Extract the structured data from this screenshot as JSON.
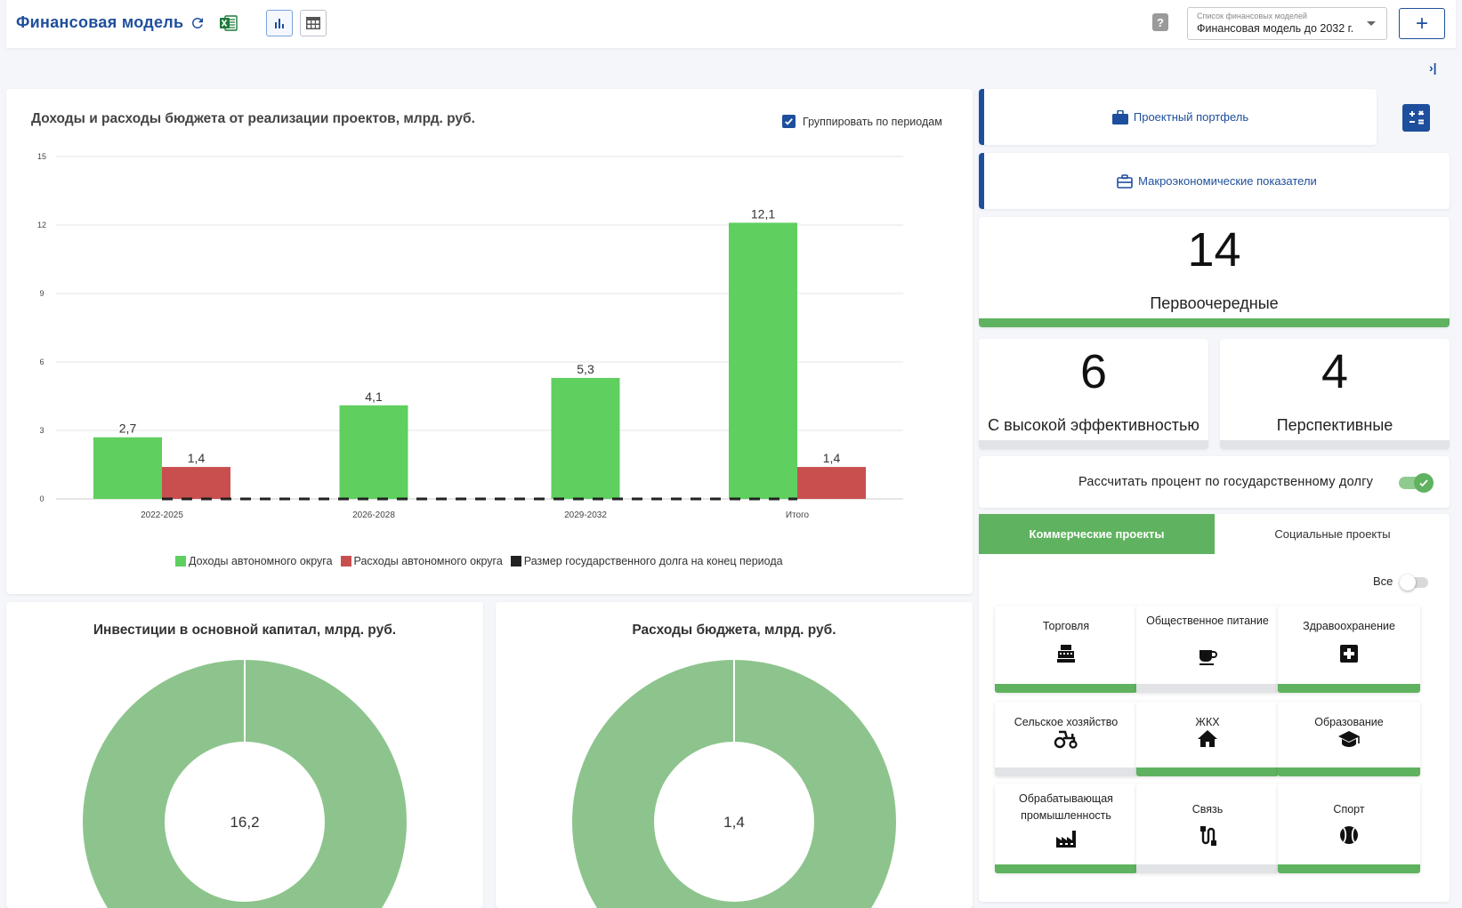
{
  "header": {
    "title": "Финансовая модель",
    "model_select_label": "Список финансовых моделей",
    "model_select_value": "Финансовая модель до 2032 г.",
    "add_label": "+",
    "help_label": "?",
    "collapse_label": "›|"
  },
  "main_chart": {
    "title": "Доходы и расходы бюджета от реализации проектов, млрд. руб.",
    "group_checkbox_label": "Группировать по периодам",
    "group_checked": true
  },
  "chart_data": [
    {
      "type": "bar",
      "categories": [
        "2022-2025",
        "2026-2028",
        "2029-2032",
        "Итого"
      ],
      "series": [
        {
          "name": "Доходы автономного округа",
          "values": [
            2.7,
            4.1,
            5.3,
            12.1
          ],
          "labels": [
            "2,7",
            "4,1",
            "5,3",
            "12,1"
          ],
          "color": "#5fcf5f"
        },
        {
          "name": "Расходы автономного округа",
          "values": [
            1.4,
            0,
            0,
            1.4
          ],
          "labels": [
            "1,4",
            "",
            "",
            "1,4"
          ],
          "color": "#c94f4f"
        },
        {
          "name": "Размер государственного долга на конец периода",
          "values": [
            0,
            0,
            0,
            0
          ],
          "color": "#222222",
          "style": "dashed-line"
        }
      ],
      "yticks": [
        "0",
        "3",
        "6",
        "9",
        "12",
        "15"
      ],
      "ylim": [
        0,
        15
      ],
      "grid": true,
      "legend": "bottom"
    },
    {
      "type": "pie",
      "title": "Инвестиции в основной капитал, млрд. руб.",
      "center_label": "16,2",
      "values": [
        16.2
      ],
      "color": "#8dc48d"
    },
    {
      "type": "pie",
      "title": "Расходы бюджета, млрд. руб.",
      "center_label": "1,4",
      "values": [
        1.4
      ],
      "color": "#8dc48d"
    }
  ],
  "right_panel": {
    "nav1_label": "Проектный портфель",
    "nav2_label": "Макроэкономические показатели",
    "stats": [
      {
        "value": "14",
        "label": "Первоочередные"
      },
      {
        "value": "6",
        "label": "С высокой эффективностью"
      },
      {
        "value": "4",
        "label": "Перспективные"
      }
    ],
    "debt_toggle_label": "Рассчитать процент по государственному долгу",
    "tabs": [
      "Коммерческие проекты",
      "Социальные проекты"
    ],
    "all_label": "Все",
    "sectors": [
      {
        "label": "Торговля",
        "icon": "cash-register-icon",
        "active": true
      },
      {
        "label": "Общественное питание",
        "icon": "coffee-cup-icon",
        "active": false
      },
      {
        "label": "Здравоохранение",
        "icon": "medical-cross-icon",
        "active": true
      },
      {
        "label": "Сельское хозяйство",
        "icon": "tractor-icon",
        "active": false
      },
      {
        "label": "ЖКХ",
        "icon": "house-icon",
        "active": true
      },
      {
        "label": "Образование",
        "icon": "graduation-cap-icon",
        "active": true
      },
      {
        "label": "Обрабатывающая промышленность",
        "icon": "factory-icon",
        "active": true
      },
      {
        "label": "Связь",
        "icon": "cable-icon",
        "active": false
      },
      {
        "label": "Спорт",
        "icon": "ball-icon",
        "active": true
      }
    ],
    "colors": {
      "active_bar": "#5fb25f",
      "inactive_bar": "#e1e3e6",
      "brand": "#1e4f9c"
    }
  }
}
